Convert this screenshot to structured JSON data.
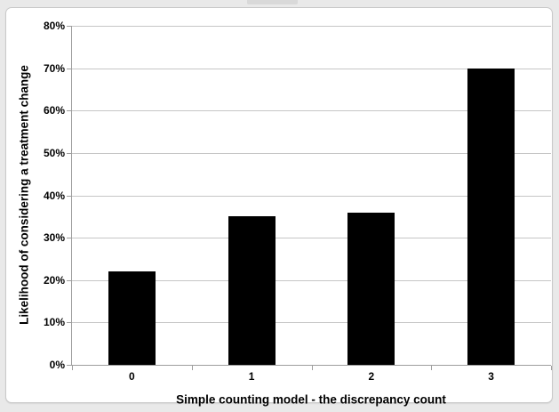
{
  "chart_data": {
    "type": "bar",
    "title": "",
    "categories": [
      "0",
      "1",
      "2",
      "3"
    ],
    "values": [
      22,
      35,
      36,
      70
    ],
    "xlabel": "Simple counting model - the discrepancy count",
    "ylabel": "Likelihood of considering a treatment change",
    "ylim": [
      0,
      80
    ],
    "ytick_step": 10,
    "ytick_labels": [
      "0%",
      "10%",
      "20%",
      "30%",
      "40%",
      "50%",
      "60%",
      "70%",
      "80%"
    ],
    "bar_color": "#000000",
    "gridline_color": "#c6c6c6",
    "axis_color": "#9e9e9e",
    "grid": true,
    "legend": "none",
    "frame_background": "#ffffff",
    "frame_border_color": "#c9c9c9"
  }
}
